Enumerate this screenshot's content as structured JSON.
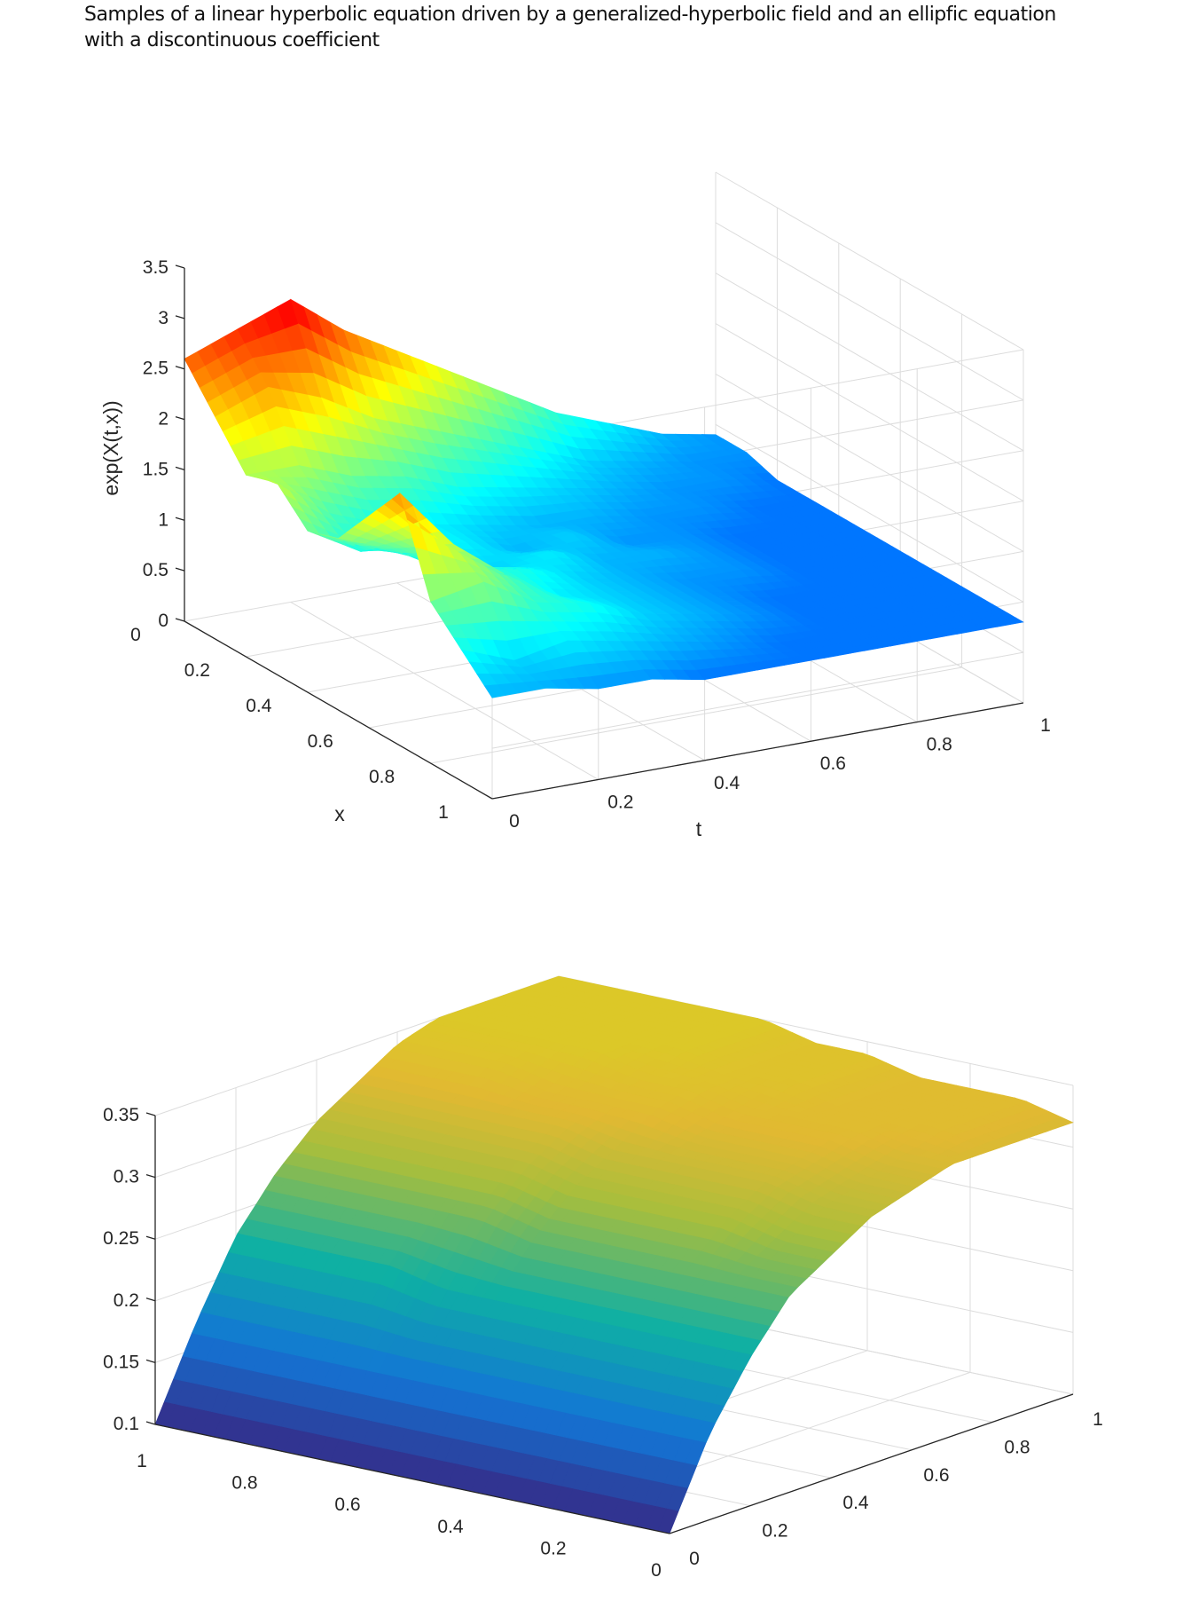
{
  "caption": {
    "line1": "Samples of a linear hyperbolic equation driven by a generalized-hyperbolic field and an ellipfic equation",
    "line2": "with a discontinuous coefficient"
  },
  "chart_data": [
    {
      "type": "surface",
      "title": "",
      "xlabel": "x",
      "ylabel": "t",
      "zlabel": "exp(X(t,x))",
      "xlim": [
        0,
        1
      ],
      "ylim": [
        0,
        1
      ],
      "zlim": [
        0,
        3.5
      ],
      "x_ticks": [
        "0",
        "0.2",
        "0.4",
        "0.6",
        "0.8",
        "1"
      ],
      "t_ticks": [
        "0",
        "0.2",
        "0.4",
        "0.6",
        "0.8",
        "1"
      ],
      "z_ticks": [
        "0",
        "0.5",
        "1",
        "1.5",
        "2",
        "2.5",
        "3",
        "3.5"
      ],
      "colormap": "jet",
      "grid": true,
      "x": [
        0,
        0.1,
        0.2,
        0.3,
        0.4,
        0.5,
        0.6,
        0.7,
        0.8,
        0.9,
        1
      ],
      "t": [
        0,
        0.1,
        0.2,
        0.3,
        0.4,
        0.5,
        0.6,
        0.7,
        0.8,
        0.9,
        1
      ],
      "z": [
        [
          2.6,
          2.2,
          1.8,
          1.9,
          1.6,
          1.7,
          2.1,
          2.5,
          1.6,
          1.3,
          1.0
        ],
        [
          2.8,
          2.4,
          1.8,
          1.5,
          1.3,
          1.5,
          1.7,
          1.9,
          1.7,
          1.1,
          1.0
        ],
        [
          3.0,
          2.2,
          1.6,
          1.3,
          1.3,
          1.2,
          1.4,
          1.5,
          1.4,
          1.2,
          0.9
        ],
        [
          2.6,
          1.9,
          1.5,
          1.2,
          1.2,
          1.1,
          1.3,
          1.2,
          1.3,
          1.1,
          0.9
        ],
        [
          2.3,
          1.7,
          1.3,
          1.1,
          1.0,
          1.2,
          1.1,
          1.1,
          1.1,
          1.0,
          0.8
        ],
        [
          2.0,
          1.5,
          1.2,
          1.0,
          1.1,
          1.0,
          1.0,
          1.0,
          1.0,
          0.9,
          0.8
        ],
        [
          1.7,
          1.3,
          1.1,
          1.0,
          0.9,
          1.0,
          0.9,
          0.9,
          0.9,
          0.8,
          0.8
        ],
        [
          1.4,
          1.1,
          1.0,
          0.9,
          0.9,
          0.9,
          0.9,
          0.8,
          0.8,
          0.8,
          0.8
        ],
        [
          1.2,
          1.0,
          0.9,
          0.9,
          0.8,
          0.8,
          0.8,
          0.8,
          0.8,
          0.8,
          0.8
        ],
        [
          1.0,
          0.9,
          0.9,
          0.8,
          0.8,
          0.8,
          0.8,
          0.8,
          0.8,
          0.8,
          0.8
        ],
        [
          0.9,
          0.9,
          0.8,
          0.8,
          0.8,
          0.8,
          0.8,
          0.8,
          0.8,
          0.8,
          0.8
        ]
      ]
    },
    {
      "type": "surface",
      "title": "",
      "xlabel": "",
      "ylabel": "",
      "zlabel": "",
      "xlim": [
        0,
        1
      ],
      "ylim": [
        0,
        1
      ],
      "zlim": [
        0.1,
        0.35
      ],
      "x_ticks": [
        "0",
        "0.2",
        "0.4",
        "0.6",
        "0.8",
        "1"
      ],
      "y_ticks": [
        "0",
        "0.2",
        "0.4",
        "0.6",
        "0.8",
        "1"
      ],
      "z_ticks": [
        "0.1",
        "0.15",
        "0.2",
        "0.25",
        "0.3",
        "0.35"
      ],
      "colormap": "parula",
      "grid": true,
      "x": [
        0,
        0.1,
        0.2,
        0.3,
        0.4,
        0.5,
        0.6,
        0.7,
        0.8,
        0.9,
        1
      ],
      "y": [
        0,
        0.1,
        0.2,
        0.3,
        0.4,
        0.5,
        0.6,
        0.7,
        0.8,
        0.9,
        1
      ],
      "z": [
        [
          0.1,
          0.1,
          0.1,
          0.1,
          0.1,
          0.1,
          0.1,
          0.1,
          0.1,
          0.1,
          0.1
        ],
        [
          0.17,
          0.17,
          0.17,
          0.17,
          0.17,
          0.17,
          0.17,
          0.17,
          0.17,
          0.17,
          0.17
        ],
        [
          0.22,
          0.22,
          0.22,
          0.22,
          0.22,
          0.22,
          0.22,
          0.23,
          0.23,
          0.23,
          0.23
        ],
        [
          0.26,
          0.26,
          0.26,
          0.26,
          0.26,
          0.26,
          0.27,
          0.27,
          0.27,
          0.27,
          0.27
        ],
        [
          0.28,
          0.28,
          0.29,
          0.29,
          0.29,
          0.29,
          0.3,
          0.3,
          0.3,
          0.3,
          0.3
        ],
        [
          0.3,
          0.3,
          0.31,
          0.31,
          0.31,
          0.31,
          0.32,
          0.32,
          0.32,
          0.32,
          0.32
        ],
        [
          0.31,
          0.31,
          0.32,
          0.32,
          0.32,
          0.33,
          0.33,
          0.33,
          0.34,
          0.34,
          0.34
        ],
        [
          0.32,
          0.32,
          0.33,
          0.33,
          0.33,
          0.34,
          0.34,
          0.35,
          0.35,
          0.35,
          0.35
        ],
        [
          0.32,
          0.33,
          0.33,
          0.33,
          0.34,
          0.34,
          0.35,
          0.35,
          0.35,
          0.35,
          0.35
        ],
        [
          0.32,
          0.33,
          0.33,
          0.33,
          0.34,
          0.34,
          0.35,
          0.35,
          0.35,
          0.35,
          0.35
        ],
        [
          0.32,
          0.33,
          0.33,
          0.33,
          0.34,
          0.34,
          0.35,
          0.35,
          0.35,
          0.35,
          0.35
        ]
      ]
    }
  ]
}
